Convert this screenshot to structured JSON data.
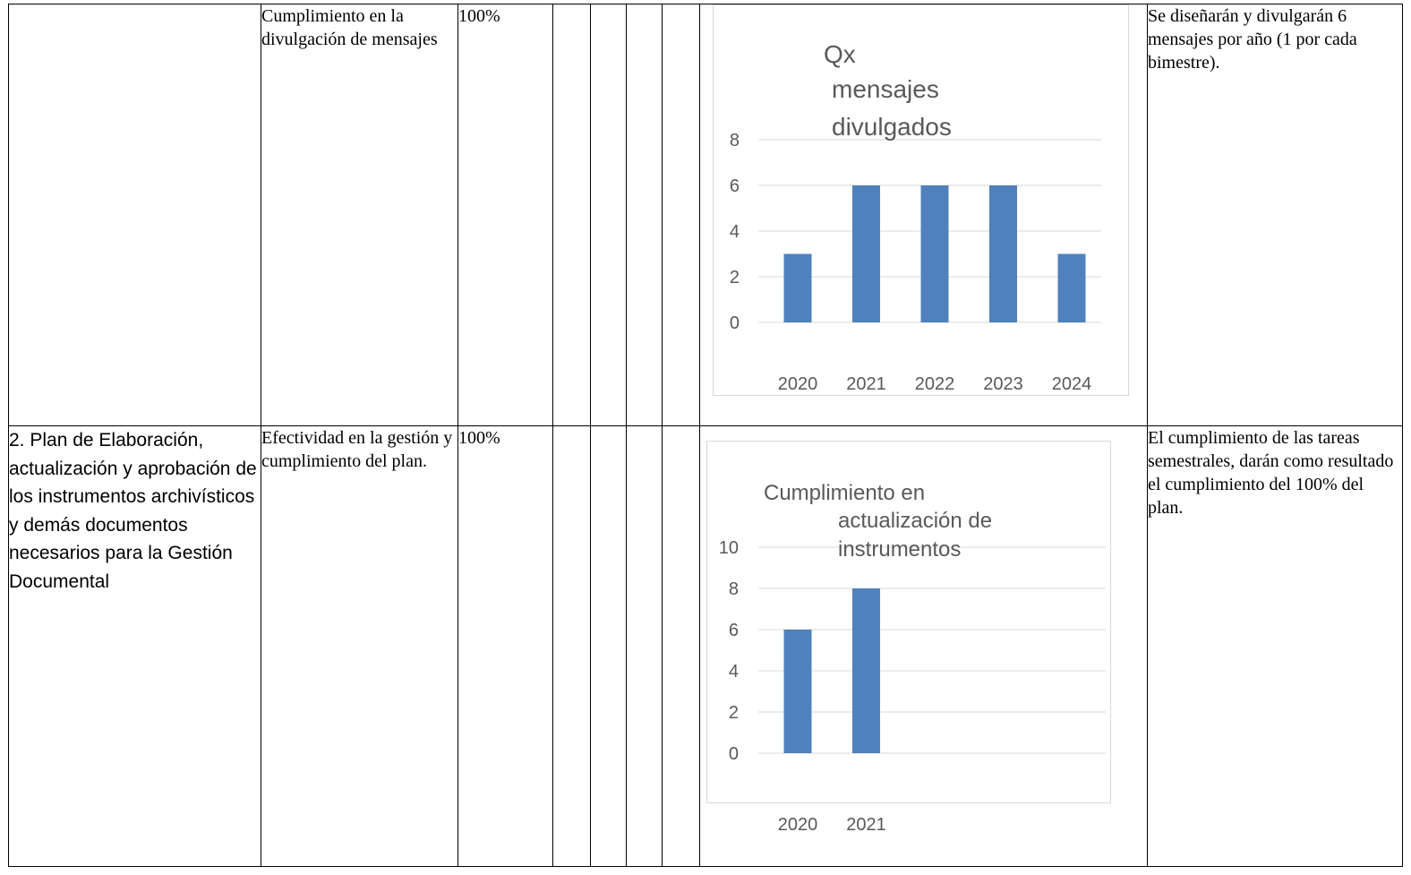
{
  "rows": [
    {
      "activity": "",
      "indicator": "Cumplimiento en la divulgación de mensajes",
      "goal": "100%",
      "description": "Se diseñarán y divulgarán 6 mensajes por año (1 por cada bimestre)."
    },
    {
      "activity": "2. Plan de Elaboración, actualización y aprobación de los instrumentos archivísticos y demás documentos necesarios para la Gestión Documental",
      "indicator": "Efectividad en la gestión y cumplimiento del plan.",
      "goal": "100%",
      "description": "El cumplimiento de las tareas semestrales, darán como resultado el cumplimiento del 100% del plan."
    }
  ],
  "chart_data": [
    {
      "type": "bar",
      "title": [
        "Qx",
        "mensajes",
        "divulgados"
      ],
      "categories": [
        "2020",
        "2021",
        "2022",
        "2023",
        "2024"
      ],
      "values": [
        3,
        6,
        6,
        6,
        3
      ],
      "yticks": [
        "0",
        "2",
        "4",
        "6",
        "8"
      ],
      "ylim": [
        0,
        8
      ],
      "grid": true,
      "color": "#4f81bd"
    },
    {
      "type": "bar",
      "title": [
        "Cumplimiento en",
        "actualización de",
        "instrumentos"
      ],
      "categories": [
        "2020",
        "2021"
      ],
      "values": [
        6,
        8
      ],
      "yticks": [
        "0",
        "2",
        "4",
        "6",
        "8",
        "10"
      ],
      "ylim": [
        0,
        10
      ],
      "grid": true,
      "color": "#4f81bd"
    }
  ]
}
